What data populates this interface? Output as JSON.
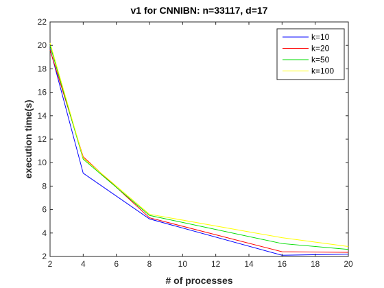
{
  "chart_data": {
    "type": "line",
    "title": "v1 for CNNIBN: n=33117, d=17",
    "xlabel": "# of processes",
    "ylabel": "execution time(s)",
    "x": [
      2,
      4,
      8,
      16,
      20
    ],
    "xlim": [
      2,
      20
    ],
    "ylim": [
      2,
      22
    ],
    "xticks": [
      2,
      4,
      6,
      8,
      10,
      12,
      14,
      16,
      18,
      20
    ],
    "yticks": [
      2,
      4,
      6,
      8,
      10,
      12,
      14,
      16,
      18,
      20,
      22
    ],
    "grid": false,
    "legend_location": "top-right",
    "series": [
      {
        "name": "k=10",
        "color": "#0000ff",
        "values": [
          19.7,
          9.1,
          5.2,
          2.1,
          2.2
        ]
      },
      {
        "name": "k=20",
        "color": "#ff0000",
        "values": [
          19.6,
          10.5,
          5.3,
          2.4,
          2.35
        ]
      },
      {
        "name": "k=50",
        "color": "#00dd00",
        "values": [
          20.0,
          10.3,
          5.5,
          3.1,
          2.6
        ]
      },
      {
        "name": "k=100",
        "color": "#ffff00",
        "values": [
          20.2,
          10.4,
          5.6,
          3.6,
          2.85
        ]
      }
    ]
  }
}
